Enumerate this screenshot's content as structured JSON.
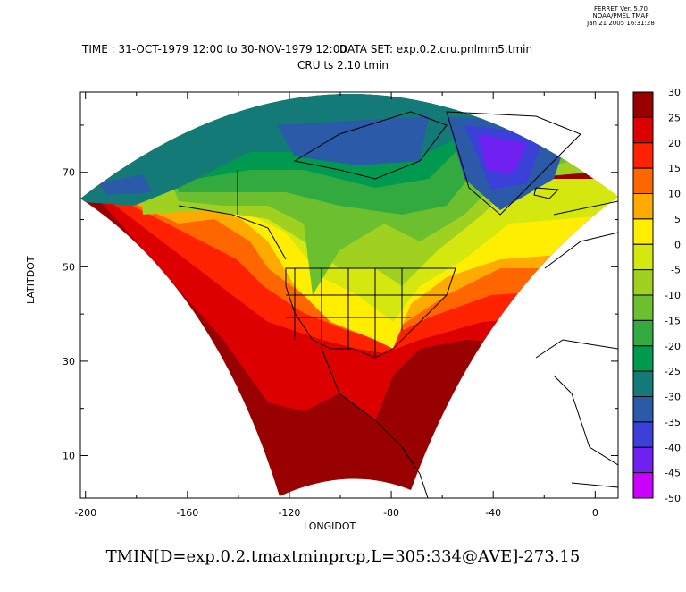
{
  "stamp": {
    "line1": "FERRET Ver. 5.70",
    "line2": "NOAA/PMEL TMAP",
    "line3": "Jan 21 2005 16:31:28"
  },
  "title": {
    "time": "TIME : 31-OCT-1979 12:00 to 30-NOV-1979 12:00",
    "dataset": "DATA SET: exp.0.2.cru.pnlmm5.tmin",
    "subtitle": "CRU ts 2.10 tmin"
  },
  "bottom_label": "TMIN[D=exp.0.2.tmaxtminprcp,L=305:334@AVE]-273.15",
  "chart_data": {
    "type": "heatmap",
    "title": "CRU ts 2.10 tmin",
    "xlabel": "LONGIDOT",
    "ylabel": "LATITDOT",
    "xlim": [
      -202,
      9
    ],
    "ylim": [
      1,
      87
    ],
    "xticks": [
      -200,
      -160,
      -120,
      -80,
      -40,
      0
    ],
    "yticks": [
      10,
      30,
      50,
      70
    ],
    "colorbar": {
      "levels": [
        30,
        25,
        20,
        15,
        10,
        5,
        0,
        -5,
        -10,
        -15,
        -20,
        -25,
        -30,
        -35,
        -40,
        -45,
        -50
      ],
      "colors": [
        "#990000",
        "#dd0000",
        "#ff2200",
        "#ff6600",
        "#ffaa00",
        "#ffee00",
        "#d4e810",
        "#a0d020",
        "#6cc030",
        "#33aa40",
        "#009950",
        "#137a78",
        "#2a5aa8",
        "#3a40d8",
        "#7020f0",
        "#cc00ff"
      ]
    }
  }
}
